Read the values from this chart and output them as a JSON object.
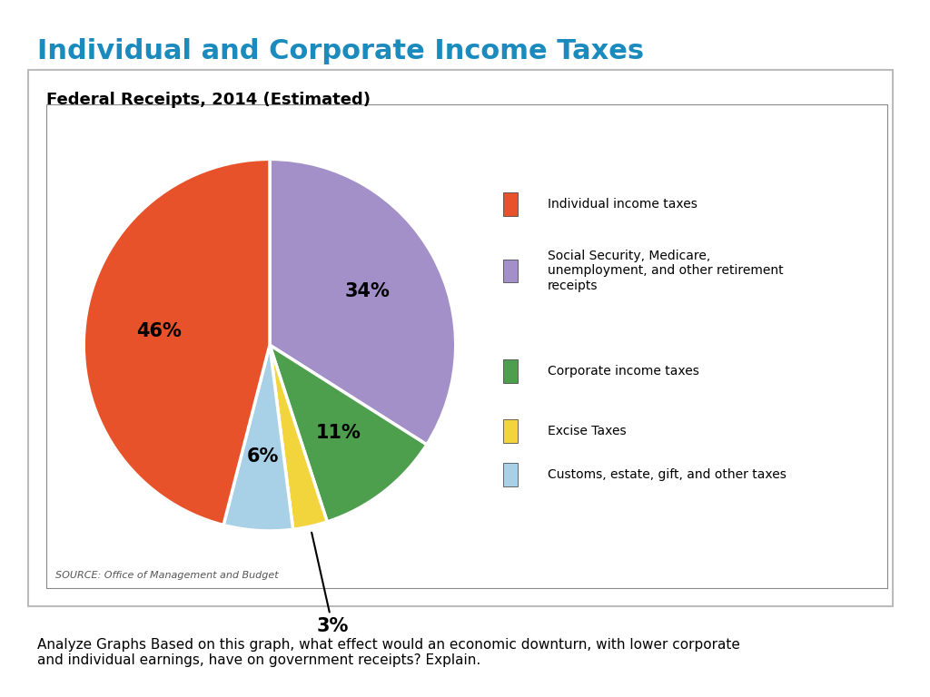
{
  "title": "Individual and Corporate Income Taxes",
  "chart_subtitle": "Federal Receipts, 2014 (Estimated)",
  "source_text": "SOURCE: Office of Management and Budget",
  "bottom_text": "Analyze Graphs Based on this graph, what effect would an economic downturn, with lower corporate\nand individual earnings, have on government receipts? Explain.",
  "slice_order": [
    46,
    34,
    11,
    3,
    6
  ],
  "colors": [
    "#E8522A",
    "#A490C8",
    "#4D9E4D",
    "#F2D53C",
    "#A8D0E6"
  ],
  "legend_labels": [
    "Individual income taxes",
    "Social Security, Medicare,\nunemployment, and other retirement\nreceipts",
    "Corporate income taxes",
    "Excise Taxes",
    "Customs, estate, gift, and other taxes"
  ],
  "pct_labels": [
    "46%",
    "34%",
    "11%",
    "3%",
    "6%"
  ],
  "background_color": "#D8DC88",
  "title_color": "#1B8BBE",
  "legend_box_color": "white",
  "border_color": "#888888"
}
